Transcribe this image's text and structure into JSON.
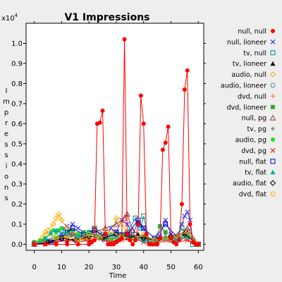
{
  "chart_data": {
    "type": "line",
    "title": "V1 Impressions",
    "xlabel": "Time",
    "ylabel": "Impressions",
    "y_multiplier_label": "x10",
    "y_multiplier_exponent": "4",
    "xlim": [
      -3,
      62
    ],
    "ylim": [
      -0.03,
      1.1
    ],
    "xticks": [
      0,
      10,
      20,
      30,
      40,
      50,
      60
    ],
    "yticks": [
      0.0,
      0.1,
      0.2,
      0.3,
      0.4,
      0.5,
      0.6,
      0.7,
      0.8,
      0.9,
      1.0
    ],
    "ytick_labels": [
      "0.0",
      "0.1",
      "0.2",
      "0.3",
      "0.4",
      "0.5",
      "0.6",
      "0.7",
      "0.8",
      "0.9",
      "1.0"
    ],
    "legend_position": "right",
    "background": "#ffffff",
    "series": [
      {
        "name": "null, null",
        "color": "#ff0000",
        "marker": "filled-circle",
        "x": [
          0,
          4,
          8,
          12,
          16,
          20,
          21,
          22,
          23,
          24,
          25,
          26,
          27,
          28,
          29,
          30,
          31,
          32,
          33,
          34,
          35,
          36,
          37,
          38,
          39,
          40,
          41,
          42,
          43,
          44,
          45,
          46,
          47,
          48,
          49,
          50,
          51,
          52,
          53,
          54,
          55,
          56,
          57,
          58,
          59,
          60
        ],
        "y": [
          0,
          0,
          0,
          0,
          0,
          0,
          0.01,
          0.02,
          0.6,
          0.605,
          0.665,
          0.05,
          0,
          0,
          0,
          0.01,
          0.02,
          0.03,
          1.02,
          0.05,
          0.02,
          0,
          0.02,
          0.1,
          0.74,
          0.6,
          0.05,
          0,
          0,
          0,
          0,
          0.03,
          0.47,
          0.505,
          0.585,
          0.03,
          0.01,
          0,
          0.02,
          0.2,
          0.77,
          0.865,
          0.1,
          0.01,
          0,
          0
        ]
      },
      {
        "name": "null, lioneer",
        "color": "#3333ff",
        "marker": "x",
        "x": [
          0,
          4,
          8,
          10,
          11,
          12,
          13,
          14,
          16,
          18,
          20,
          22,
          24,
          26,
          28,
          30,
          32,
          34,
          36,
          38,
          40,
          42,
          44,
          46,
          48,
          50,
          52,
          54,
          55,
          56,
          57,
          58,
          60
        ],
        "y": [
          0,
          0,
          0.02,
          0.05,
          0.08,
          0.09,
          0.07,
          0.1,
          0.08,
          0.06,
          0.04,
          0.08,
          0.05,
          0.02,
          0.08,
          0.06,
          0.12,
          0.1,
          0.05,
          0.11,
          0.08,
          0.02,
          0,
          0.04,
          0.12,
          0.05,
          0.02,
          0.1,
          0.14,
          0.16,
          0.12,
          0.02,
          0
        ]
      },
      {
        "name": "tv, null",
        "color": "#008888",
        "marker": "open-square",
        "x": [
          0,
          6,
          10,
          14,
          18,
          22,
          26,
          30,
          34,
          37,
          38,
          39,
          40,
          42,
          46,
          50,
          54,
          56,
          58,
          60
        ],
        "y": [
          0,
          0.01,
          0.04,
          0.06,
          0.03,
          0.08,
          0.05,
          0.04,
          0.06,
          0.13,
          0.1,
          0.08,
          0.14,
          0.02,
          0.03,
          0.02,
          0.08,
          0.04,
          0,
          0
        ]
      },
      {
        "name": "tv, lioneer",
        "color": "#000000",
        "marker": "filled-triangle",
        "x": [
          0,
          8,
          12,
          16,
          20,
          24,
          28,
          30,
          32,
          34,
          38,
          40,
          44,
          48,
          52,
          56,
          60
        ],
        "y": [
          0,
          0.01,
          0.02,
          0.03,
          0.02,
          0.03,
          0.01,
          0.02,
          0.04,
          0.03,
          0.05,
          0.02,
          0.01,
          0.03,
          0.02,
          0.06,
          0
        ]
      },
      {
        "name": "audio, null",
        "color": "#ffaa00",
        "marker": "open-diamond",
        "x": [
          0,
          3,
          5,
          7,
          8,
          9,
          10,
          12,
          14,
          16,
          18,
          20,
          22,
          24,
          26,
          28,
          30,
          32,
          34,
          36,
          40,
          44,
          48,
          52,
          56,
          60
        ],
        "y": [
          0,
          0.03,
          0.07,
          0.1,
          0.13,
          0.15,
          0.12,
          0.08,
          0.06,
          0.05,
          0.03,
          0.02,
          0.08,
          0.04,
          0.06,
          0.02,
          0.13,
          0.1,
          0.06,
          0.03,
          0.02,
          0.01,
          0.03,
          0.02,
          0.05,
          0
        ]
      },
      {
        "name": "audio, lioneer",
        "color": "#448888",
        "marker": "open-circle",
        "x": [
          0,
          4,
          8,
          12,
          16,
          20,
          24,
          28,
          32,
          36,
          40,
          44,
          48,
          52,
          56,
          60
        ],
        "y": [
          0,
          0.02,
          0.04,
          0.05,
          0.03,
          0.06,
          0.04,
          0.03,
          0.05,
          0.02,
          0.04,
          0.01,
          0.03,
          0.02,
          0.04,
          0
        ]
      },
      {
        "name": "dvd, null",
        "color": "#ff7744",
        "marker": "plus",
        "x": [
          0,
          5,
          10,
          15,
          20,
          25,
          30,
          35,
          40,
          45,
          50,
          55,
          60
        ],
        "y": [
          0,
          0.01,
          0.02,
          0.02,
          0.03,
          0.02,
          0.03,
          0.02,
          0.03,
          0.01,
          0.02,
          0.03,
          0
        ]
      },
      {
        "name": "dvd, lioneer",
        "color": "#33aa33",
        "marker": "filled-square",
        "x": [
          0,
          4,
          8,
          12,
          16,
          20,
          24,
          28,
          32,
          36,
          40,
          44,
          46,
          48,
          52,
          56,
          60
        ],
        "y": [
          0.01,
          0.02,
          0.03,
          0.05,
          0.04,
          0.06,
          0.04,
          0.02,
          0.05,
          0.03,
          0.04,
          0.02,
          0.09,
          0.06,
          0.03,
          0.05,
          0
        ]
      },
      {
        "name": "null, pg",
        "color": "#993333",
        "marker": "open-triangle",
        "x": [
          0,
          6,
          10,
          14,
          18,
          22,
          26,
          30,
          33,
          34,
          36,
          40,
          44,
          48,
          52,
          56,
          60
        ],
        "y": [
          0,
          0.01,
          0.03,
          0.05,
          0.04,
          0.06,
          0.08,
          0.1,
          0.13,
          0.15,
          0.07,
          0.03,
          0.02,
          0.04,
          0.03,
          0.08,
          0
        ]
      },
      {
        "name": "tv, pg",
        "color": "#999999",
        "marker": "filled-diamond",
        "x": [
          0,
          6,
          12,
          18,
          24,
          30,
          36,
          42,
          48,
          54,
          60
        ],
        "y": [
          0,
          0.02,
          0.03,
          0.05,
          0.04,
          0.03,
          0.05,
          0.02,
          0.04,
          0.03,
          0
        ]
      },
      {
        "name": "audio, pg",
        "color": "#22dd22",
        "marker": "filled-circle",
        "x": [
          0,
          2,
          4,
          6,
          7,
          8,
          9,
          10,
          12,
          14,
          16,
          18,
          20,
          24,
          28,
          32,
          36,
          40,
          44,
          48,
          52,
          56,
          60
        ],
        "y": [
          0,
          0.02,
          0.03,
          0.05,
          0.07,
          0.06,
          0.07,
          0.08,
          0.06,
          0.07,
          0.05,
          0.06,
          0.04,
          0.03,
          0.02,
          0.04,
          0.03,
          0.02,
          0.01,
          0.03,
          0.02,
          0.04,
          0
        ]
      },
      {
        "name": "dvd, pg",
        "color": "#ff2222",
        "marker": "x",
        "x": [
          0,
          4,
          8,
          12,
          16,
          20,
          24,
          28,
          32,
          36,
          40,
          44,
          48,
          52,
          56,
          60
        ],
        "y": [
          0,
          0,
          0.01,
          0.02,
          0.01,
          0.02,
          0.03,
          0.01,
          0.02,
          0.03,
          0.01,
          0,
          0.02,
          0.01,
          0.02,
          0
        ]
      },
      {
        "name": "null, flat",
        "color": "#0000cc",
        "marker": "open-square",
        "x": [
          0,
          6,
          10,
          12,
          14,
          18,
          22,
          26,
          30,
          34,
          38,
          40,
          44,
          48,
          52,
          56,
          60
        ],
        "y": [
          0,
          0.01,
          0.03,
          0.06,
          0.08,
          0.05,
          0.07,
          0.04,
          0.06,
          0.05,
          0.12,
          0.08,
          0.03,
          0.1,
          0.04,
          0.06,
          0
        ]
      },
      {
        "name": "tv, flat",
        "color": "#00aaaa",
        "marker": "filled-triangle",
        "x": [
          0,
          4,
          6,
          8,
          12,
          16,
          20,
          24,
          28,
          32,
          36,
          40,
          44,
          48,
          52,
          56,
          60
        ],
        "y": [
          0,
          0.03,
          0.06,
          0.07,
          0.05,
          0.04,
          0.06,
          0.03,
          0.05,
          0.04,
          0.03,
          0.02,
          0.01,
          0.03,
          0.02,
          0.04,
          0
        ]
      },
      {
        "name": "audio, flat",
        "color": "#000000",
        "marker": "open-diamond",
        "x": [
          0,
          5,
          10,
          15,
          20,
          25,
          30,
          35,
          40,
          45,
          50,
          55,
          60
        ],
        "y": [
          0,
          0.01,
          0.03,
          0.02,
          0.04,
          0.03,
          0.05,
          0.04,
          0.03,
          0.02,
          0.04,
          0.05,
          0
        ]
      },
      {
        "name": "dvd, flat",
        "color": "#ffaa00",
        "marker": "open-circle",
        "x": [
          0,
          4,
          8,
          12,
          16,
          20,
          24,
          28,
          32,
          36,
          40,
          44,
          48,
          52,
          56,
          60
        ],
        "y": [
          0,
          0.06,
          0.03,
          0.04,
          0.02,
          0.05,
          0.03,
          0.06,
          0.04,
          0.02,
          0.05,
          0.02,
          0.03,
          0.04,
          0.06,
          0
        ]
      }
    ]
  }
}
